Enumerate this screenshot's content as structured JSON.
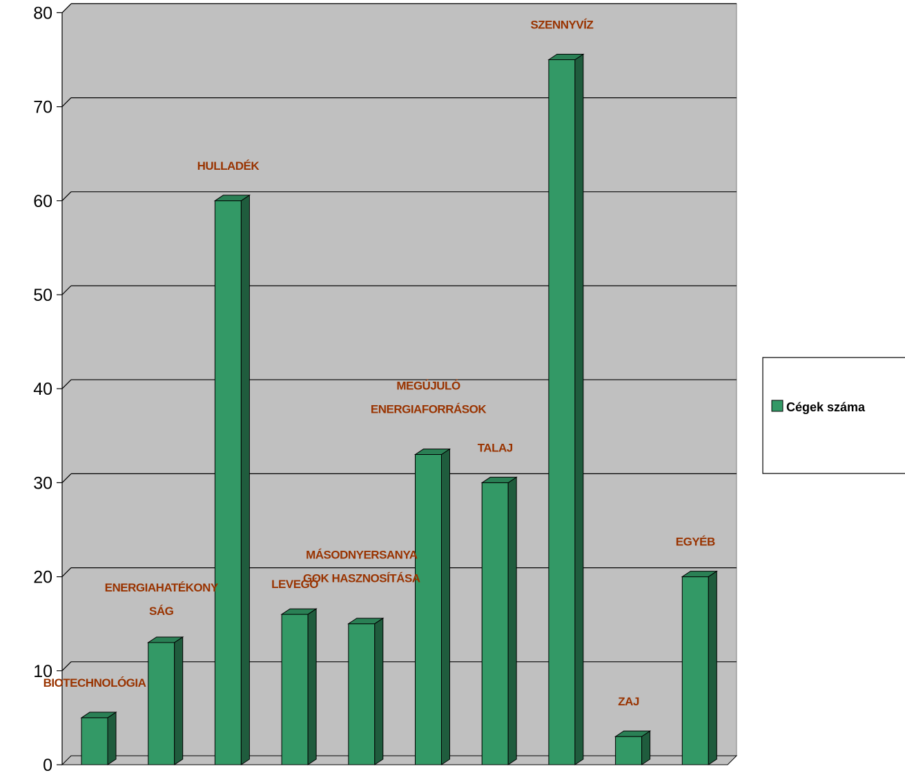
{
  "chart_data": {
    "type": "bar",
    "categories": [
      "BIOTECHNOLÓGIA",
      "ENERGIAHATÉKONYSÁG",
      "HULLADÉK",
      "LEVEGŐ",
      "MÁSODNYERSANYAGOK HASZNOSÍTÁSA",
      "MEGÚJULÓ ENERGIAFORRÁSOK",
      "TALAJ",
      "SZENNYVÍZ",
      "ZAJ",
      "EGYÉB"
    ],
    "category_label_lines": [
      [
        "BIOTECHNOLÓGIA"
      ],
      [
        "ENERGIAHATÉKONY",
        "SÁG"
      ],
      [
        "HULLADÉK"
      ],
      [
        "LEVEGŐ"
      ],
      [
        "MÁSODNYERSANYA",
        "GOK HASZNOSÍTÁSA"
      ],
      [
        "MEGÚJULÓ",
        "ENERGIAFORRÁSOK"
      ],
      [
        "TALAJ"
      ],
      [
        "SZENNYVÍZ"
      ],
      [
        "ZAJ"
      ],
      [
        "EGYÉB"
      ]
    ],
    "series": [
      {
        "name": "Cégek száma",
        "values": [
          5,
          13,
          60,
          16,
          15,
          33,
          30,
          75,
          3,
          20
        ]
      }
    ],
    "ylim": [
      0,
      80
    ],
    "yticks": [
      0,
      10,
      20,
      30,
      40,
      50,
      60,
      70,
      80
    ],
    "grid": true,
    "legend_position": "right",
    "colors": {
      "bar_front": "#339966",
      "bar_side": "#1f5c3d",
      "bar_top": "#2a8055",
      "plot_wall": "#c0c0c0",
      "category_label": "#993300"
    }
  }
}
